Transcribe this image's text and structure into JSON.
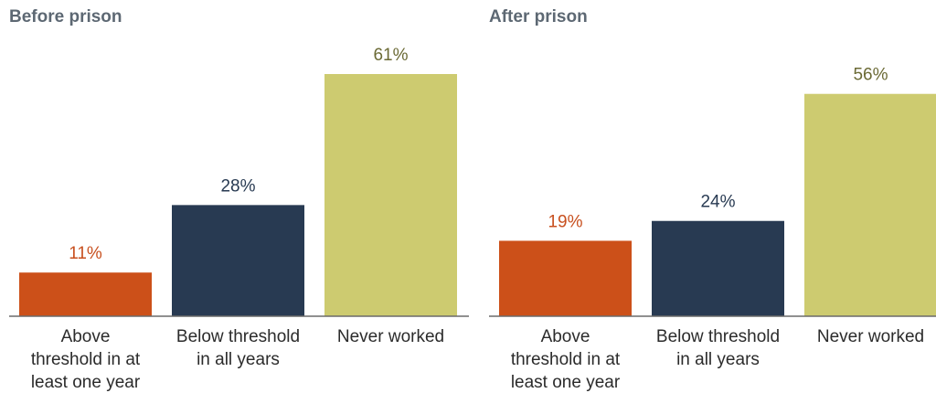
{
  "chart_data": [
    {
      "type": "bar",
      "title": "Before prison",
      "categories": [
        "Above threshold in at least one year",
        "Below threshold in all years",
        "Never worked"
      ],
      "category_lines": [
        [
          "Above",
          "threshold in at",
          "least one year"
        ],
        [
          "Below threshold",
          "in all years"
        ],
        [
          "Never worked"
        ]
      ],
      "values": [
        11,
        28,
        61
      ],
      "value_labels": [
        "11%",
        "28%",
        "61%"
      ],
      "colors": [
        "#cc5019",
        "#283a52",
        "#cdcb70"
      ],
      "label_colors": [
        "#c8501f",
        "#283a52",
        "#6b6a35"
      ],
      "ylim": [
        0,
        61
      ],
      "grid": false,
      "xlabel": "",
      "ylabel": ""
    },
    {
      "type": "bar",
      "title": "After prison",
      "categories": [
        "Above threshold in at least one year",
        "Below threshold in all years",
        "Never worked"
      ],
      "category_lines": [
        [
          "Above",
          "threshold in at",
          "least one year"
        ],
        [
          "Below threshold",
          "in all years"
        ],
        [
          "Never worked"
        ]
      ],
      "values": [
        19,
        24,
        56
      ],
      "value_labels": [
        "19%",
        "24%",
        "56%"
      ],
      "colors": [
        "#cc5019",
        "#283a52",
        "#cdcb70"
      ],
      "label_colors": [
        "#c8501f",
        "#283a52",
        "#6b6a35"
      ],
      "ylim": [
        0,
        61
      ],
      "grid": false,
      "xlabel": "",
      "ylabel": ""
    }
  ]
}
